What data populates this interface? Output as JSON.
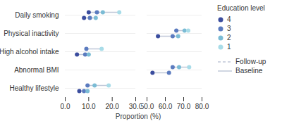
{
  "chart_data": {
    "type": "dot",
    "xlabel": "Proportion (%)",
    "legend_title": "Education level",
    "categories": [
      "Daily smoking",
      "Physical inactivity",
      "High alcohol intake",
      "Abnormal BMI",
      "Healthy lifestyle"
    ],
    "grid": true,
    "line_color": "#c0c8d8",
    "series": [
      {
        "name": "4",
        "color": "#3b4d9e"
      },
      {
        "name": "3",
        "color": "#5b7bbf"
      },
      {
        "name": "2",
        "color": "#7bbcd5"
      },
      {
        "name": "1",
        "color": "#a8dce8"
      }
    ],
    "groups": [
      {
        "name": "Follow-up",
        "line_style": "dashed"
      },
      {
        "name": "Baseline",
        "line_style": "solid"
      }
    ],
    "panels": [
      {
        "xlim": [
          0,
          30
        ],
        "xticks": [
          {
            "value": 0,
            "label": "0.0"
          },
          {
            "value": 10,
            "label": "10.0"
          },
          {
            "value": 20,
            "label": "20.0"
          },
          {
            "value": 30,
            "label": "30.0"
          }
        ],
        "series": [
          {
            "name": "4",
            "stage": "Baseline",
            "values": [
              8.0,
              null,
              5.0,
              null,
              6.0
            ]
          },
          {
            "name": "3",
            "stage": "Baseline",
            "values": [
              10.5,
              null,
              8.5,
              null,
              8.0
            ]
          },
          {
            "name": "2",
            "stage": "Baseline",
            "values": [
              13.0,
              null,
              10.0,
              null,
              9.5
            ]
          },
          {
            "name": "1",
            "stage": "Baseline",
            "values": [
              null,
              null,
              null,
              null,
              null
            ]
          },
          {
            "name": "4",
            "stage": "Follow-up",
            "values": [
              10.0,
              null,
              null,
              null,
              null
            ]
          },
          {
            "name": "3",
            "stage": "Follow-up",
            "values": [
              13.5,
              null,
              9.0,
              null,
              9.5
            ]
          },
          {
            "name": "2",
            "stage": "Follow-up",
            "values": [
              16.0,
              null,
              null,
              null,
              12.5
            ]
          },
          {
            "name": "1",
            "stage": "Follow-up",
            "values": [
              23.0,
              null,
              15.5,
              null,
              18.5
            ]
          }
        ]
      },
      {
        "xlim": [
          50,
          80
        ],
        "xticks": [
          {
            "value": 50,
            "label": "50.0"
          },
          {
            "value": 60,
            "label": "60.0"
          },
          {
            "value": 70,
            "label": "70.0"
          },
          {
            "value": 80,
            "label": "80.0"
          }
        ],
        "tick_labels": "x",
        "series": [
          {
            "name": "4",
            "stage": "Baseline",
            "values": [
              null,
              56.0,
              null,
              53.0,
              null
            ]
          },
          {
            "name": "3",
            "stage": "Baseline",
            "values": [
              null,
              64.0,
              null,
              62.0,
              null
            ]
          },
          {
            "name": "2",
            "stage": "Baseline",
            "values": [
              null,
              67.0,
              null,
              null,
              null
            ]
          },
          {
            "name": "1",
            "stage": "Baseline",
            "values": [
              null,
              null,
              null,
              null,
              null
            ]
          },
          {
            "name": "4",
            "stage": "Follow-up",
            "values": [
              null,
              null,
              null,
              null,
              null
            ]
          },
          {
            "name": "3",
            "stage": "Follow-up",
            "values": [
              null,
              66.0,
              null,
              64.0,
              null
            ]
          },
          {
            "name": "2",
            "stage": "Follow-up",
            "values": [
              null,
              70.5,
              null,
              67.5,
              null
            ]
          },
          {
            "name": "1",
            "stage": "Follow-up",
            "values": [
              null,
              72.5,
              null,
              73.0,
              null
            ]
          }
        ]
      }
    ]
  }
}
